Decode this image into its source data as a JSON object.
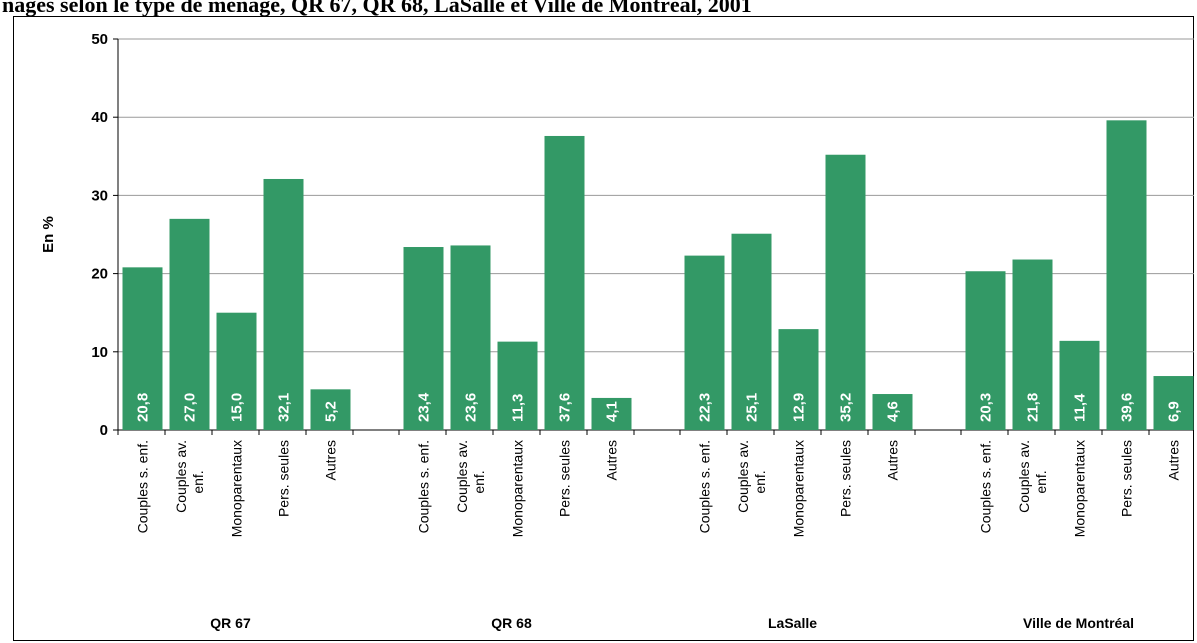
{
  "header": {
    "title": "nages selon le type de ménage, QR 67, QR 68, LaSalle et Ville de Montréal, 2001"
  },
  "chart_data": {
    "type": "bar",
    "ylabel": "En %",
    "ylim": [
      0,
      50
    ],
    "yticks": [
      0,
      10,
      20,
      30,
      40,
      50
    ],
    "grid": true,
    "bar_color": "#339966",
    "categories": [
      "Couples s. enf.",
      "Couples av. enf.",
      "Monoparentaux",
      "Pers. seules",
      "Autres"
    ],
    "groups": [
      {
        "name": "QR 67",
        "values": [
          20.8,
          27.0,
          15.0,
          32.1,
          5.2
        ],
        "labels": [
          "20,8",
          "27,0",
          "15,0",
          "32,1",
          "5,2"
        ]
      },
      {
        "name": "QR 68",
        "values": [
          23.4,
          23.6,
          11.3,
          37.6,
          4.1
        ],
        "labels": [
          "23,4",
          "23,6",
          "11,3",
          "37,6",
          "4,1"
        ]
      },
      {
        "name": "LaSalle",
        "values": [
          22.3,
          25.1,
          12.9,
          35.2,
          4.6
        ],
        "labels": [
          "22,3",
          "25,1",
          "12,9",
          "35,2",
          "4,6"
        ]
      },
      {
        "name": "Ville de Montréal",
        "values": [
          20.3,
          21.8,
          11.4,
          39.6,
          6.9
        ],
        "labels": [
          "20,3",
          "21,8",
          "11,4",
          "39,6",
          "6,9"
        ]
      }
    ]
  }
}
